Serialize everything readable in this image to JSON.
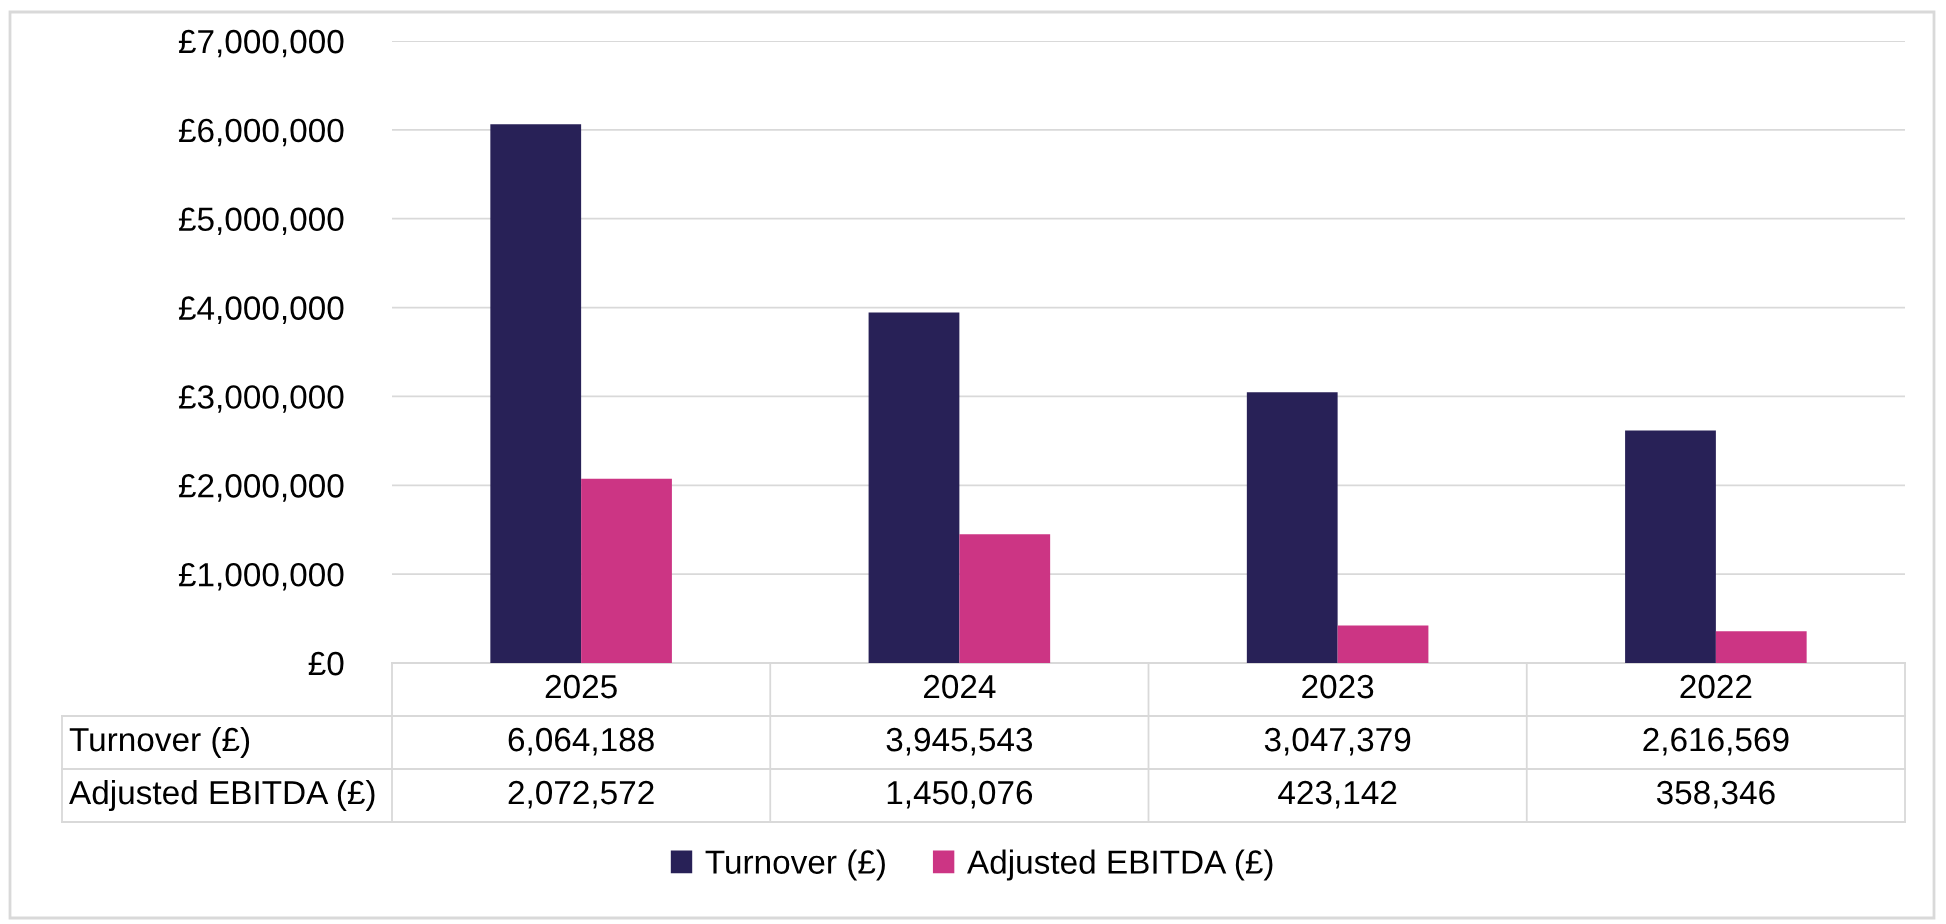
{
  "chart_data": {
    "type": "bar",
    "categories": [
      "2025",
      "2024",
      "2023",
      "2022"
    ],
    "series": [
      {
        "name": "Turnover (£)",
        "color": "#282157",
        "values": [
          6064188,
          3945543,
          3047379,
          2616569
        ],
        "value_labels": [
          "6,064,188",
          "3,945,543",
          "3,047,379",
          "2,616,569"
        ]
      },
      {
        "name": "Adjusted EBITDA (£)",
        "color": "#cc3584",
        "values": [
          2072572,
          1450076,
          423142,
          358346
        ],
        "value_labels": [
          "2,072,572",
          "1,450,076",
          "423,142",
          "358,346"
        ]
      }
    ],
    "ylim": [
      0,
      7000000
    ],
    "yticks": [
      {
        "value": 0,
        "label": "£0"
      },
      {
        "value": 1000000,
        "label": "£1,000,000"
      },
      {
        "value": 2000000,
        "label": "£2,000,000"
      },
      {
        "value": 3000000,
        "label": "£3,000,000"
      },
      {
        "value": 4000000,
        "label": "£4,000,000"
      },
      {
        "value": 5000000,
        "label": "£5,000,000"
      },
      {
        "value": 6000000,
        "label": "£6,000,000"
      },
      {
        "value": 7000000,
        "label": "£7,000,000"
      }
    ],
    "grid": "y",
    "legend": "bottom"
  }
}
